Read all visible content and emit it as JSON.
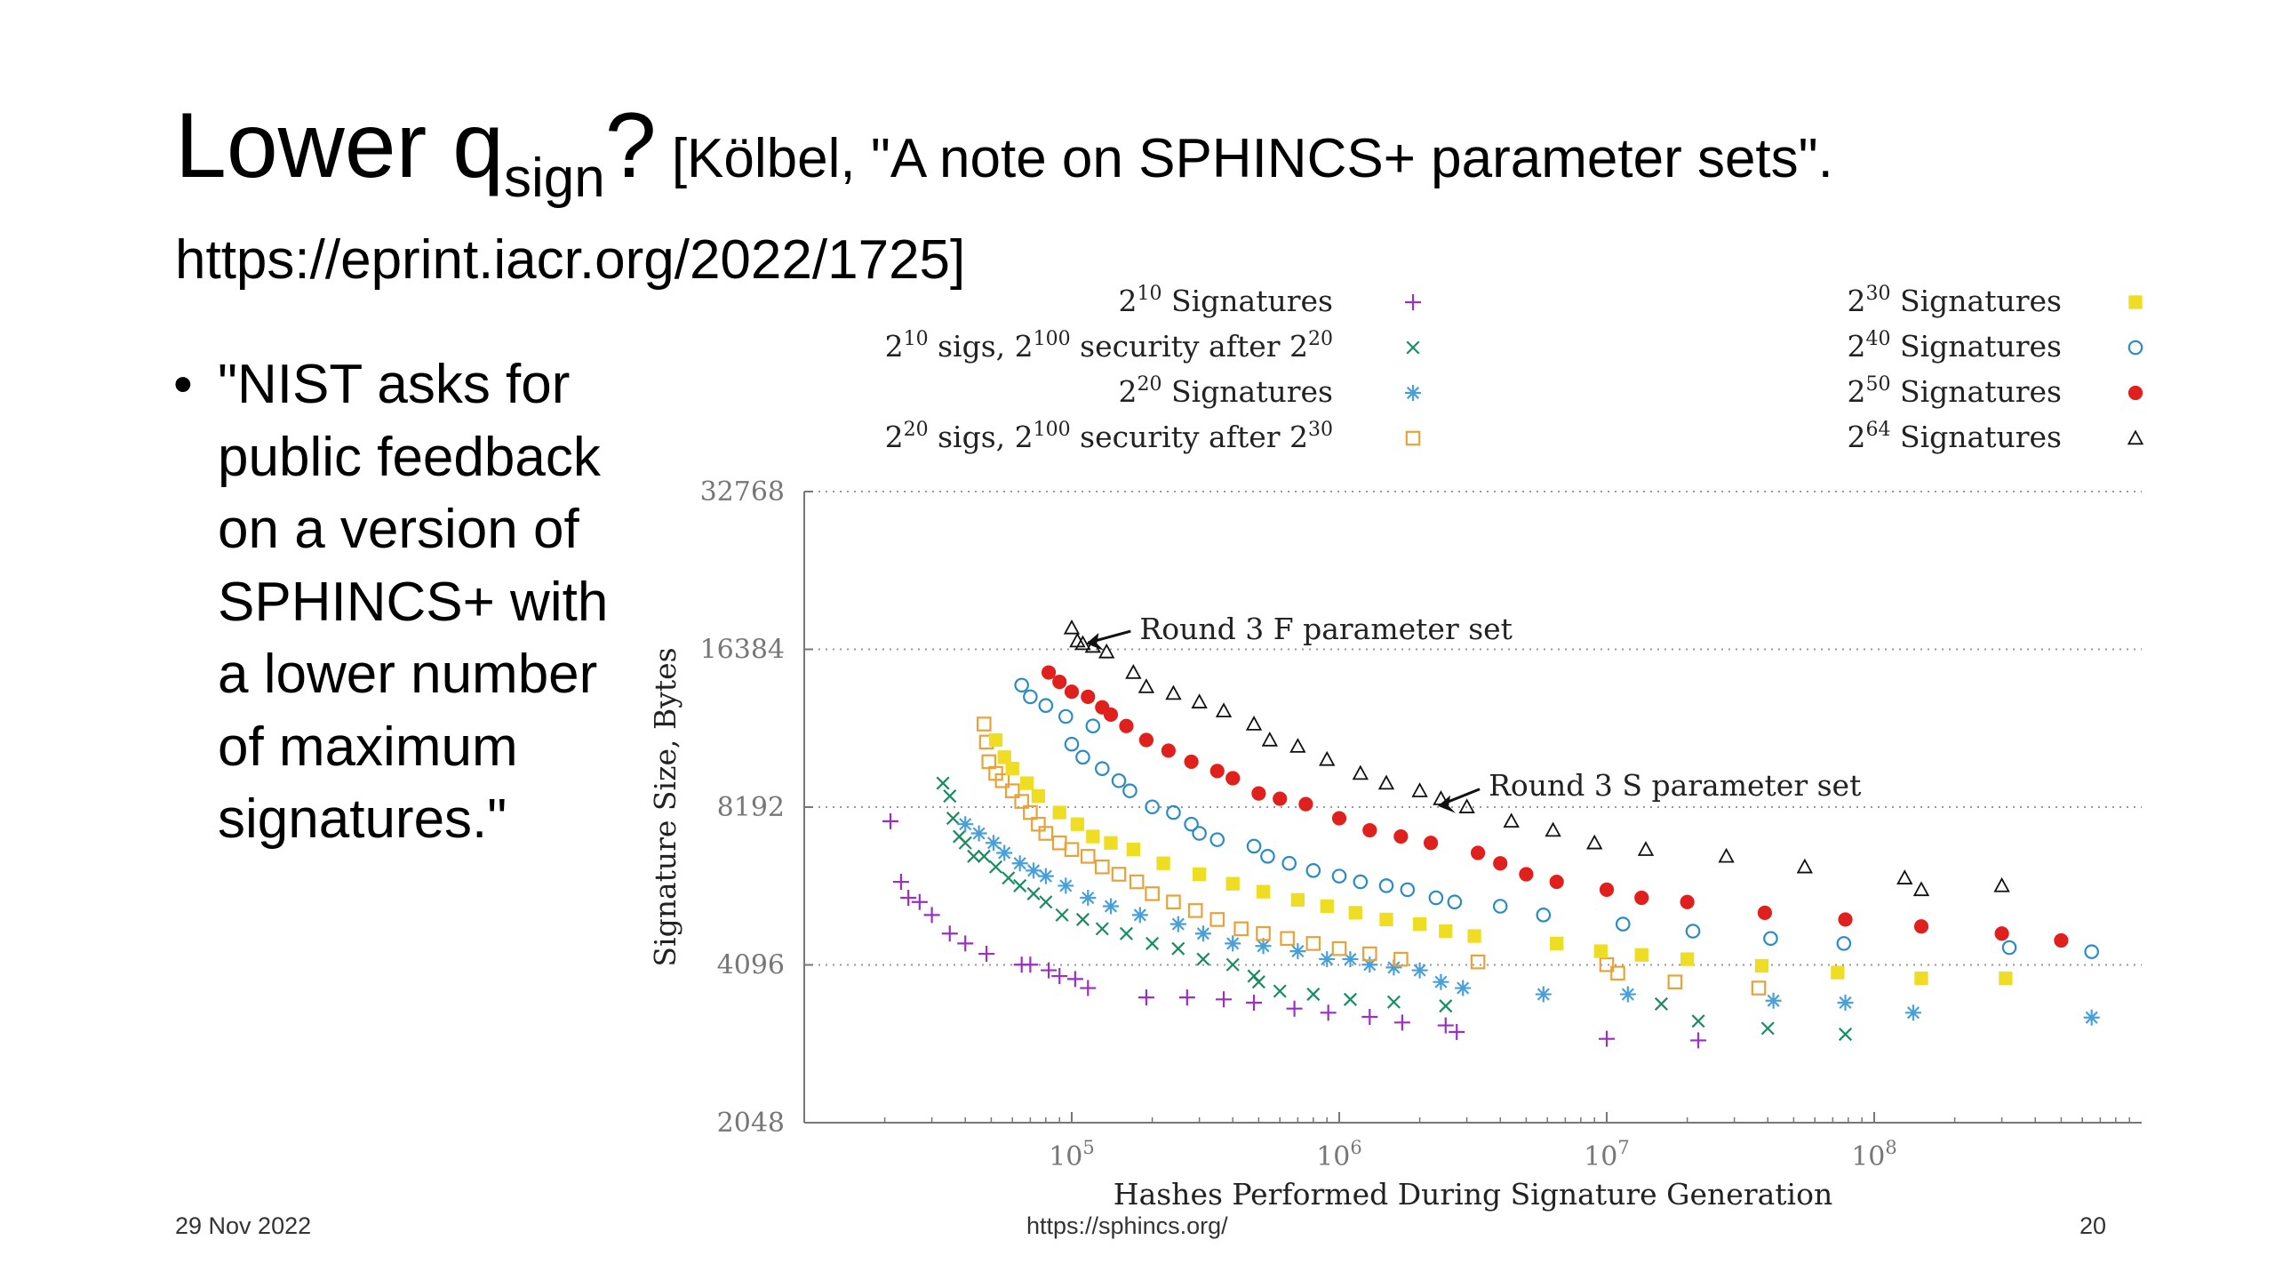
{
  "slide": {
    "title_main": "Lower q",
    "title_sub": "sign",
    "title_q": "?",
    "title_citation": "[Kölbel, \"A note on SPHINCS+ parameter sets\". https://eprint.iacr.org/2022/1725]",
    "bullets": [
      "\"NIST asks for public feedback on a version of SPHINCS+ with a lower number of maximum signatures.\""
    ],
    "footer_date": "29 Nov 2022",
    "footer_url": "https://sphincs.org/",
    "footer_page": "20"
  },
  "chart_data": {
    "type": "scatter",
    "xlabel": "Hashes Performed During Signature Generation",
    "ylabel": "Signature Size, Bytes",
    "x_scale": "log10",
    "y_scale": "log2",
    "xlim": [
      10000,
      1000000000
    ],
    "ylim": [
      2048,
      32768
    ],
    "x_ticks": [
      {
        "value": 100000,
        "base": "10",
        "exp": "5"
      },
      {
        "value": 1000000,
        "base": "10",
        "exp": "6"
      },
      {
        "value": 10000000,
        "base": "10",
        "exp": "7"
      },
      {
        "value": 100000000,
        "base": "10",
        "exp": "8"
      }
    ],
    "y_ticks": [
      {
        "value": 2048,
        "label": "2048"
      },
      {
        "value": 4096,
        "label": "4096"
      },
      {
        "value": 8192,
        "label": "8192"
      },
      {
        "value": 16384,
        "label": "16384"
      },
      {
        "value": 32768,
        "label": "32768"
      }
    ],
    "grid_y": true,
    "legend_position": "top",
    "annotations": [
      {
        "text": "Round 3 F parameter set",
        "x": 105000,
        "y": 17000
      },
      {
        "text": "Round 3 S parameter set",
        "x": 2200000,
        "y": 8200
      }
    ],
    "series": [
      {
        "name": "2^10 Signatures",
        "legend_base": "2",
        "legend_exp": "10",
        "legend_rest": " Signatures",
        "marker": "plus",
        "color": "#9a2fc2",
        "legend_column": 0,
        "points": [
          [
            21000,
            7700
          ],
          [
            23000,
            5900
          ],
          [
            24500,
            5500
          ],
          [
            27000,
            5400
          ],
          [
            30000,
            5100
          ],
          [
            35000,
            4700
          ],
          [
            40000,
            4500
          ],
          [
            48000,
            4300
          ],
          [
            65000,
            4100
          ],
          [
            70000,
            4100
          ],
          [
            82000,
            4000
          ],
          [
            90000,
            3900
          ],
          [
            103000,
            3850
          ],
          [
            115000,
            3700
          ],
          [
            190000,
            3550
          ],
          [
            270000,
            3550
          ],
          [
            370000,
            3520
          ],
          [
            480000,
            3470
          ],
          [
            680000,
            3380
          ],
          [
            910000,
            3320
          ],
          [
            1300000,
            3260
          ],
          [
            1720000,
            3180
          ],
          [
            2500000,
            3140
          ],
          [
            2750000,
            3050
          ],
          [
            10000000,
            2960
          ],
          [
            22000000,
            2940
          ]
        ]
      },
      {
        "name": "2^10 sigs, 2^100 security after 2^20",
        "legend_base": "2",
        "legend_exp": "10",
        "legend_mid": " sigs, 2",
        "legend_exp2": "100",
        "legend_mid2": " security after 2",
        "legend_exp3": "20",
        "marker": "cross",
        "color": "#1a8c62",
        "legend_column": 0,
        "points": [
          [
            33000,
            9100
          ],
          [
            35000,
            8600
          ],
          [
            36000,
            7800
          ],
          [
            38000,
            7200
          ],
          [
            40000,
            7000
          ],
          [
            43000,
            6600
          ],
          [
            47000,
            6600
          ],
          [
            52000,
            6300
          ],
          [
            58000,
            6000
          ],
          [
            64000,
            5800
          ],
          [
            72000,
            5600
          ],
          [
            80000,
            5400
          ],
          [
            92000,
            5100
          ],
          [
            110000,
            5000
          ],
          [
            130000,
            4800
          ],
          [
            160000,
            4700
          ],
          [
            200000,
            4500
          ],
          [
            250000,
            4400
          ],
          [
            310000,
            4200
          ],
          [
            400000,
            4100
          ],
          [
            480000,
            3900
          ],
          [
            500000,
            3800
          ],
          [
            600000,
            3650
          ],
          [
            800000,
            3600
          ],
          [
            1100000,
            3520
          ],
          [
            1600000,
            3480
          ],
          [
            2500000,
            3420
          ],
          [
            16000000,
            3450
          ],
          [
            22000000,
            3200
          ],
          [
            40000000,
            3100
          ],
          [
            78000000,
            3020
          ]
        ]
      },
      {
        "name": "2^20 Signatures",
        "legend_base": "2",
        "legend_exp": "20",
        "legend_rest": " Signatures",
        "marker": "star",
        "color": "#49a0d9",
        "legend_column": 0,
        "points": [
          [
            40000,
            7600
          ],
          [
            45000,
            7300
          ],
          [
            51000,
            7000
          ],
          [
            56000,
            6700
          ],
          [
            64000,
            6400
          ],
          [
            72000,
            6200
          ],
          [
            80000,
            6050
          ],
          [
            95000,
            5800
          ],
          [
            115000,
            5500
          ],
          [
            140000,
            5300
          ],
          [
            180000,
            5100
          ],
          [
            250000,
            4900
          ],
          [
            310000,
            4700
          ],
          [
            400000,
            4500
          ],
          [
            520000,
            4450
          ],
          [
            700000,
            4350
          ],
          [
            900000,
            4200
          ],
          [
            1100000,
            4200
          ],
          [
            1300000,
            4100
          ],
          [
            1600000,
            4050
          ],
          [
            2000000,
            4000
          ],
          [
            2400000,
            3800
          ],
          [
            2900000,
            3700
          ],
          [
            5800000,
            3600
          ],
          [
            12000000,
            3600
          ],
          [
            42000000,
            3500
          ],
          [
            78000000,
            3470
          ],
          [
            140000000,
            3320
          ],
          [
            650000000,
            3250
          ]
        ]
      },
      {
        "name": "2^20 sigs, 2^100 security after 2^30",
        "legend_base": "2",
        "legend_exp": "20",
        "legend_mid": " sigs, 2",
        "legend_exp2": "100",
        "legend_mid2": " security after 2",
        "legend_exp3": "30",
        "marker": "square",
        "color": "#e6a33a",
        "legend_column": 0,
        "points": [
          [
            47000,
            11800
          ],
          [
            48000,
            10900
          ],
          [
            49000,
            10000
          ],
          [
            52000,
            9500
          ],
          [
            55000,
            9200
          ],
          [
            60000,
            8800
          ],
          [
            65000,
            8400
          ],
          [
            70000,
            8000
          ],
          [
            75000,
            7600
          ],
          [
            80000,
            7300
          ],
          [
            90000,
            7000
          ],
          [
            100000,
            6800
          ],
          [
            115000,
            6600
          ],
          [
            130000,
            6300
          ],
          [
            150000,
            6100
          ],
          [
            175000,
            5900
          ],
          [
            200000,
            5600
          ],
          [
            240000,
            5400
          ],
          [
            290000,
            5200
          ],
          [
            350000,
            5000
          ],
          [
            430000,
            4800
          ],
          [
            520000,
            4700
          ],
          [
            640000,
            4600
          ],
          [
            800000,
            4500
          ],
          [
            1000000,
            4400
          ],
          [
            1300000,
            4300
          ],
          [
            1700000,
            4200
          ],
          [
            3300000,
            4150
          ],
          [
            10000000,
            4100
          ],
          [
            11000000,
            3950
          ],
          [
            18000000,
            3800
          ],
          [
            37000000,
            3700
          ]
        ]
      },
      {
        "name": "2^30 Signatures",
        "legend_base": "2",
        "legend_exp": "30",
        "legend_rest": " Signatures",
        "marker": "filled-square",
        "color": "#eedd22",
        "legend_column": 1,
        "points": [
          [
            52000,
            11000
          ],
          [
            56000,
            10200
          ],
          [
            60000,
            9700
          ],
          [
            68000,
            9100
          ],
          [
            75000,
            8600
          ],
          [
            90000,
            8000
          ],
          [
            105000,
            7600
          ],
          [
            120000,
            7200
          ],
          [
            140000,
            7000
          ],
          [
            170000,
            6800
          ],
          [
            220000,
            6400
          ],
          [
            300000,
            6100
          ],
          [
            400000,
            5850
          ],
          [
            520000,
            5650
          ],
          [
            700000,
            5450
          ],
          [
            900000,
            5300
          ],
          [
            1150000,
            5150
          ],
          [
            1500000,
            5000
          ],
          [
            2000000,
            4900
          ],
          [
            2500000,
            4750
          ],
          [
            3200000,
            4650
          ],
          [
            6500000,
            4500
          ],
          [
            9500000,
            4350
          ],
          [
            13500000,
            4280
          ],
          [
            20000000,
            4200
          ],
          [
            38000000,
            4080
          ],
          [
            73000000,
            3960
          ],
          [
            150000000,
            3860
          ],
          [
            310000000,
            3860
          ]
        ]
      },
      {
        "name": "2^40 Signatures",
        "legend_base": "2",
        "legend_exp": "40",
        "legend_rest": " Signatures",
        "marker": "circle",
        "color": "#2b8cc4",
        "legend_column": 1,
        "points": [
          [
            65000,
            14000
          ],
          [
            70000,
            13300
          ],
          [
            80000,
            12800
          ],
          [
            95000,
            12200
          ],
          [
            120000,
            11700
          ],
          [
            100000,
            10800
          ],
          [
            110000,
            10200
          ],
          [
            130000,
            9700
          ],
          [
            150000,
            9200
          ],
          [
            165000,
            8800
          ],
          [
            200000,
            8200
          ],
          [
            240000,
            8000
          ],
          [
            280000,
            7600
          ],
          [
            300000,
            7300
          ],
          [
            350000,
            7100
          ],
          [
            480000,
            6900
          ],
          [
            540000,
            6600
          ],
          [
            650000,
            6400
          ],
          [
            800000,
            6200
          ],
          [
            1000000,
            6050
          ],
          [
            1200000,
            5900
          ],
          [
            1500000,
            5800
          ],
          [
            1800000,
            5700
          ],
          [
            2300000,
            5500
          ],
          [
            2700000,
            5400
          ],
          [
            4000000,
            5300
          ],
          [
            5800000,
            5100
          ],
          [
            11500000,
            4900
          ],
          [
            21000000,
            4750
          ],
          [
            41000000,
            4600
          ],
          [
            77000000,
            4500
          ],
          [
            320000000,
            4420
          ],
          [
            650000000,
            4340
          ]
        ]
      },
      {
        "name": "2^50 Signatures",
        "legend_base": "2",
        "legend_exp": "50",
        "legend_rest": " Signatures",
        "marker": "filled-circle",
        "color": "#e0201c",
        "legend_column": 1,
        "points": [
          [
            82000,
            14800
          ],
          [
            90000,
            14200
          ],
          [
            100000,
            13600
          ],
          [
            115000,
            13300
          ],
          [
            130000,
            12700
          ],
          [
            140000,
            12300
          ],
          [
            160000,
            11700
          ],
          [
            190000,
            11000
          ],
          [
            230000,
            10500
          ],
          [
            280000,
            10000
          ],
          [
            350000,
            9600
          ],
          [
            400000,
            9300
          ],
          [
            500000,
            8700
          ],
          [
            600000,
            8500
          ],
          [
            750000,
            8300
          ],
          [
            1000000,
            7800
          ],
          [
            1300000,
            7400
          ],
          [
            1700000,
            7200
          ],
          [
            2200000,
            7000
          ],
          [
            3300000,
            6700
          ],
          [
            4000000,
            6400
          ],
          [
            5000000,
            6100
          ],
          [
            6500000,
            5900
          ],
          [
            10000000,
            5700
          ],
          [
            13500000,
            5500
          ],
          [
            20000000,
            5400
          ],
          [
            39000000,
            5150
          ],
          [
            78000000,
            5000
          ],
          [
            150000000,
            4850
          ],
          [
            300000000,
            4700
          ],
          [
            500000000,
            4560
          ]
        ]
      },
      {
        "name": "2^64 Signatures",
        "legend_base": "2",
        "legend_exp": "64",
        "legend_rest": " Signatures",
        "marker": "triangle",
        "color": "#111111",
        "legend_column": 1,
        "points": [
          [
            100000,
            18000
          ],
          [
            105000,
            17000
          ],
          [
            110000,
            16800
          ],
          [
            120000,
            16600
          ],
          [
            135000,
            16200
          ],
          [
            170000,
            14800
          ],
          [
            190000,
            13900
          ],
          [
            240000,
            13500
          ],
          [
            300000,
            13000
          ],
          [
            370000,
            12500
          ],
          [
            480000,
            11800
          ],
          [
            550000,
            11000
          ],
          [
            700000,
            10700
          ],
          [
            900000,
            10100
          ],
          [
            1200000,
            9500
          ],
          [
            1500000,
            9100
          ],
          [
            2000000,
            8800
          ],
          [
            2400000,
            8500
          ],
          [
            3000000,
            8200
          ],
          [
            4400000,
            7700
          ],
          [
            6300000,
            7400
          ],
          [
            9000000,
            7000
          ],
          [
            14000000,
            6800
          ],
          [
            28000000,
            6600
          ],
          [
            55000000,
            6300
          ],
          [
            130000000,
            6000
          ],
          [
            300000000,
            5800
          ],
          [
            150000000,
            5700
          ]
        ]
      }
    ]
  }
}
